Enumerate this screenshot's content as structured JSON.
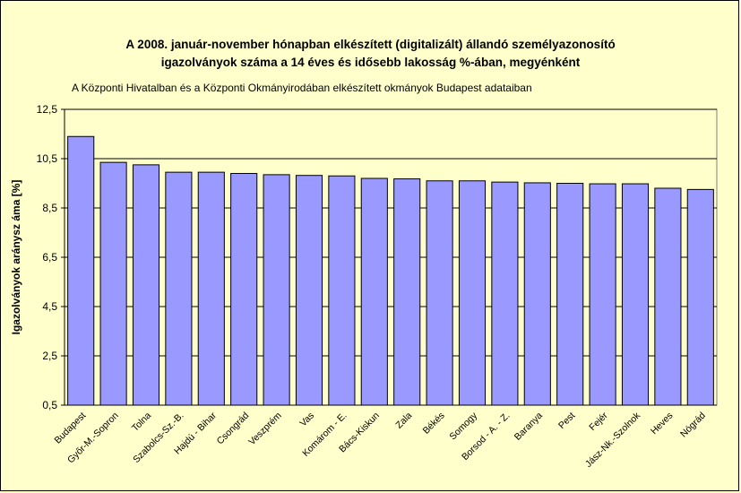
{
  "chart_data": {
    "type": "bar",
    "title_lines": [
      "A 2008. január-november hónapban elkészített (digitalizált) állandó személyazonosító",
      "igazolványok száma a 14 éves és idősebb lakosság %-ában, megyénként"
    ],
    "subtitle": "A  Központi Hivatalban és  a Központi Okmányirodában elkészített  okmányok Budapest adataiban",
    "ylabel": "Igazolványok aránysz áma [%]",
    "xlabel": "",
    "ylim": [
      0.5,
      12.5
    ],
    "yticks": [
      "0,5",
      "2,5",
      "4,5",
      "6,5",
      "8,5",
      "10,5",
      "12,5"
    ],
    "categories": [
      "Budapest",
      "Győr-M.-Sopron",
      "Tolna",
      "Szabolcs-Sz.-B.",
      "Hajdú - Bihar",
      "Csongrád",
      "Veszprém",
      "Vas",
      "Komárom - E.",
      "Bács-Kiskun",
      "Zala",
      "Békés",
      "Somogy",
      "Borsod - A. - Z.",
      "Baranya",
      "Pest",
      "Fejér",
      "Jász-Nk.-Szolnok",
      "Heves",
      "Nógrád"
    ],
    "values": [
      11.4,
      10.35,
      10.25,
      9.95,
      9.95,
      9.9,
      9.85,
      9.82,
      9.8,
      9.7,
      9.68,
      9.6,
      9.6,
      9.55,
      9.52,
      9.5,
      9.48,
      9.48,
      9.3,
      9.25
    ],
    "bar_color": "#9999ff",
    "grid": true,
    "legend": "none"
  }
}
